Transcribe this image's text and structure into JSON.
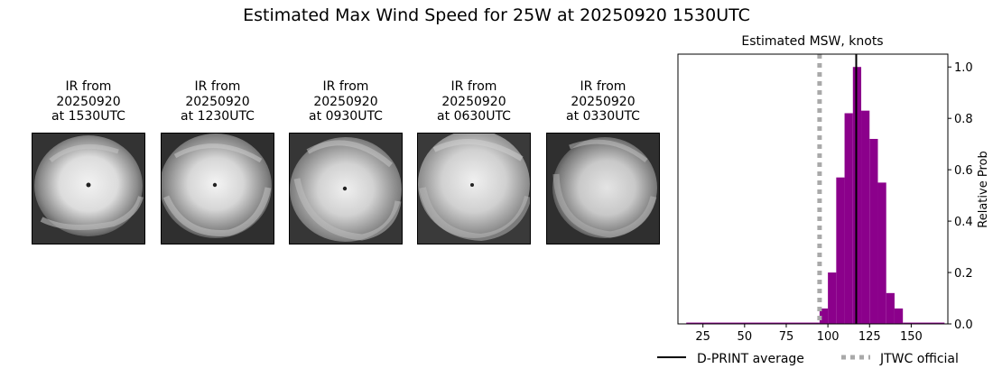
{
  "title": "Estimated Max Wind Speed for 25W at 20250920 1530UTC",
  "ir_panels": [
    {
      "line1": "IR from",
      "line2": "20250920",
      "line3": "at 1530UTC"
    },
    {
      "line1": "IR from",
      "line2": "20250920",
      "line3": "at 1230UTC"
    },
    {
      "line1": "IR from",
      "line2": "20250920",
      "line3": "at 0930UTC"
    },
    {
      "line1": "IR from",
      "line2": "20250920",
      "line3": "at 0630UTC"
    },
    {
      "line1": "IR from",
      "line2": "20250920",
      "line3": "at 0330UTC"
    }
  ],
  "chart_data": {
    "type": "bar",
    "title": "Estimated MSW, knots",
    "xlabel": "",
    "ylabel": "Relative Prob",
    "xlim": [
      10,
      172
    ],
    "ylim": [
      0,
      1.05
    ],
    "xticks": [
      25,
      50,
      75,
      100,
      125,
      150
    ],
    "yticks": [
      0.0,
      0.2,
      0.4,
      0.6,
      0.8,
      1.0
    ],
    "bar_color": "#8b008b",
    "bins": [
      {
        "x0": 15,
        "x1": 95,
        "value": 0.005
      },
      {
        "x0": 95,
        "x1": 100,
        "value": 0.06
      },
      {
        "x0": 100,
        "x1": 105,
        "value": 0.2
      },
      {
        "x0": 105,
        "x1": 110,
        "value": 0.57
      },
      {
        "x0": 110,
        "x1": 115,
        "value": 0.82
      },
      {
        "x0": 115,
        "x1": 120,
        "value": 1.0
      },
      {
        "x0": 120,
        "x1": 125,
        "value": 0.83
      },
      {
        "x0": 125,
        "x1": 130,
        "value": 0.72
      },
      {
        "x0": 130,
        "x1": 135,
        "value": 0.55
      },
      {
        "x0": 135,
        "x1": 140,
        "value": 0.12
      },
      {
        "x0": 140,
        "x1": 145,
        "value": 0.06
      },
      {
        "x0": 145,
        "x1": 170,
        "value": 0.005
      }
    ],
    "dprint_average": 117,
    "jtwc_official": 95,
    "legend": [
      {
        "label": "D-PRINT average",
        "color": "#000000",
        "style": "solid"
      },
      {
        "label": "JTWC official",
        "color": "#a9a9a9",
        "style": "dotted"
      }
    ],
    "legend_position": "bottom"
  }
}
